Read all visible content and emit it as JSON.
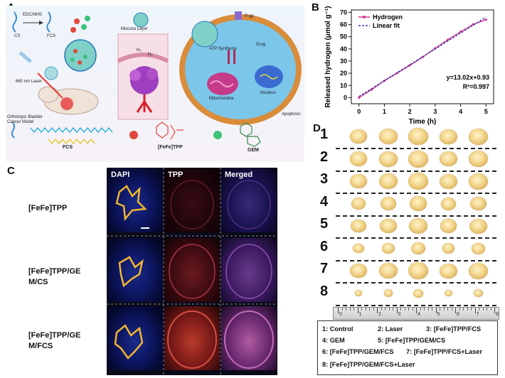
{
  "panels": {
    "a": "A",
    "b": "B",
    "c": "C",
    "d": "D"
  },
  "panelA": {
    "cs": "CS",
    "edc": "EDC/NHS",
    "fcs": "FCS",
    "laser": "660 nm Laser",
    "mucosa": "Mucosa Layer",
    "model": "Orthotopic Bladder Cancer Model",
    "pgp": "P-gp",
    "drug": "Drug",
    "atp": "ATP Synthesis",
    "mito": "Mitochondria",
    "nucleus": "Nucleus",
    "apoptosis": "Apoptosis",
    "h2": "H₂",
    "fcs_struct": "FCS",
    "fefe_tpp": "[FeFe]TPP",
    "gem": "GEM",
    "colors": {
      "fefe": "#e0483c",
      "gem": "#3cc47a",
      "cell": "#7cc6ea",
      "membrane": "#d98c3a"
    }
  },
  "chart_data": {
    "type": "line",
    "x": [
      0,
      0.5,
      1,
      1.5,
      2,
      2.5,
      3,
      3.5,
      4,
      4.5,
      5
    ],
    "series": [
      {
        "name": "Hydrogen",
        "values": [
          0,
          6.6,
          13.9,
          20.1,
          26.5,
          33.2,
          40.5,
          47.6,
          54.1,
          60.2,
          64.0
        ],
        "color": "#d6348f",
        "style": "solid-markers"
      },
      {
        "name": "Linear fit",
        "values": [
          0.93,
          7.44,
          13.95,
          20.46,
          26.97,
          33.48,
          39.99,
          46.5,
          53.01,
          59.52,
          66.03
        ],
        "color": "#2e35a8",
        "style": "dashed"
      }
    ],
    "xlabel": "Time (h)",
    "ylabel": "Released hydrogen (μmol g⁻¹)",
    "xlim": [
      -0.3,
      5.3
    ],
    "ylim": [
      -5,
      72
    ],
    "xticks": [
      0,
      1,
      2,
      3,
      4,
      5
    ],
    "yticks": [
      0,
      10,
      20,
      30,
      40,
      50,
      60,
      70
    ],
    "annotation": {
      "eq": "y=13.02x+0.93",
      "r2": "R²=0.997"
    },
    "legend": "top-left"
  },
  "panelC": {
    "headers": [
      "DAPI",
      "TPP",
      "Merged"
    ],
    "rows": [
      {
        "label1": "[FeFe]TPP",
        "label2": ""
      },
      {
        "label1": "[FeFe]TPP/GE",
        "label2": "M/CS"
      },
      {
        "label1": "[FeFe]TPP/GE",
        "label2": "M/FCS"
      }
    ]
  },
  "panelD": {
    "rows": [
      "1",
      "2",
      "3",
      "4",
      "5",
      "6",
      "7",
      "8"
    ],
    "tumor_counts": [
      5,
      5,
      5,
      5,
      5,
      5,
      5,
      5
    ],
    "ruler_marks": [
      "0",
      "1",
      "2",
      "3",
      "4",
      "5",
      "6",
      "7",
      "8"
    ],
    "legend": [
      "1: Control",
      "2: Laser",
      "3: [FeFe]TPP/FCS",
      "4: GEM",
      "5: [FeFe]TPP/GEM/CS",
      "6: [FeFe]TPP/GEM/FCS",
      "7: [FeFe]TPP/FCS+Laser",
      "8: [FeFe]TPP/GEM/FCS+Laser"
    ]
  }
}
